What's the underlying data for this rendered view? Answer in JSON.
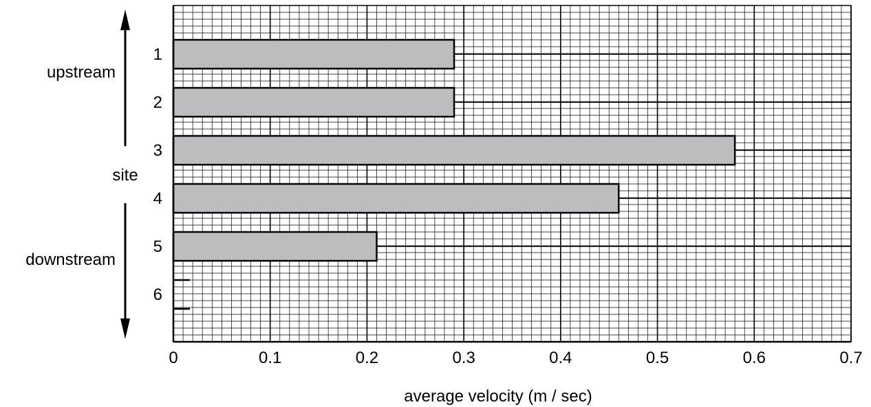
{
  "chart_data": {
    "type": "bar",
    "orientation": "horizontal",
    "title": "",
    "xlabel": "average velocity (m / sec)",
    "ylabel": "site",
    "categories": [
      "1",
      "2",
      "3",
      "4",
      "5",
      "6"
    ],
    "values": [
      0.29,
      0.29,
      0.58,
      0.46,
      0.21,
      null
    ],
    "xlim": [
      0,
      0.7
    ],
    "xticks": [
      "0",
      "0.1",
      "0.2",
      "0.3",
      "0.4",
      "0.5",
      "0.6",
      "0.7"
    ],
    "grid": true,
    "annotations": {
      "upstream": "upstream",
      "downstream": "downstream"
    },
    "colors": {
      "bar_fill": "#bcbdbf",
      "bar_stroke": "#000000",
      "grid": "#000000"
    }
  }
}
